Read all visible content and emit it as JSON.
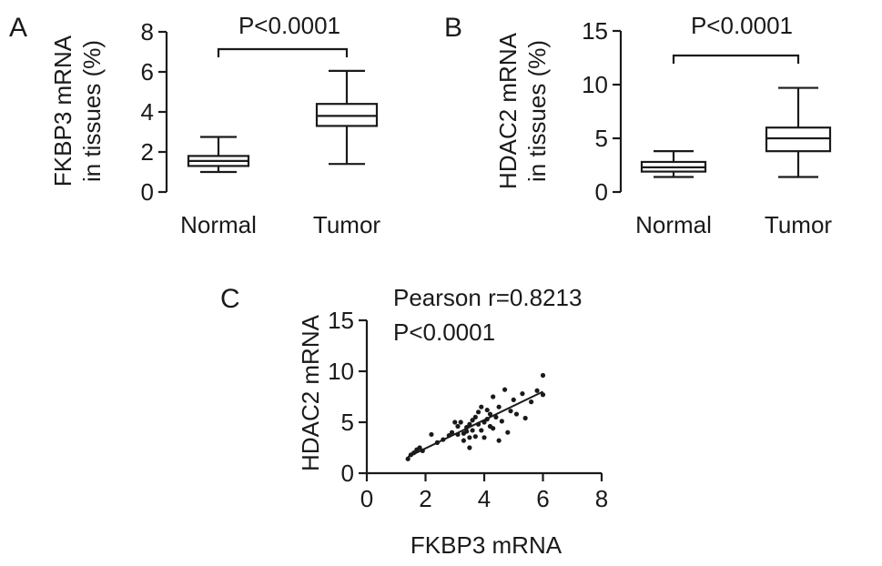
{
  "chart_data": [
    {
      "panel": "A",
      "type": "box",
      "ylabel_line1": "FKBP3 mRNA",
      "ylabel_line2": "in tissues (%)",
      "ylim": [
        0,
        8
      ],
      "yticks": [
        "0",
        "2",
        "4",
        "6",
        "8"
      ],
      "categories": [
        "Normal",
        "Tumor"
      ],
      "boxes": [
        {
          "name": "Normal",
          "min": 1.0,
          "q1": 1.3,
          "median": 1.55,
          "q3": 1.8,
          "max": 2.75
        },
        {
          "name": "Tumor",
          "min": 1.4,
          "q1": 3.3,
          "median": 3.8,
          "q3": 4.4,
          "max": 6.05
        }
      ],
      "annotation": "P<0.0001"
    },
    {
      "panel": "B",
      "type": "box",
      "ylabel_line1": "HDAC2 mRNA",
      "ylabel_line2": "in tissues (%)",
      "ylim": [
        0,
        15
      ],
      "yticks": [
        "0",
        "5",
        "10",
        "15"
      ],
      "categories": [
        "Normal",
        "Tumor"
      ],
      "boxes": [
        {
          "name": "Normal",
          "min": 1.4,
          "q1": 1.9,
          "median": 2.3,
          "q3": 2.8,
          "max": 3.8
        },
        {
          "name": "Tumor",
          "min": 1.4,
          "q1": 3.8,
          "median": 5.0,
          "q3": 6.0,
          "max": 9.7
        }
      ],
      "annotation": "P<0.0001"
    },
    {
      "panel": "C",
      "type": "scatter",
      "xlabel": "FKBP3 mRNA",
      "ylabel": "HDAC2 mRNA",
      "xlim": [
        0,
        8
      ],
      "ylim": [
        0,
        15
      ],
      "xticks": [
        "0",
        "2",
        "4",
        "6",
        "8"
      ],
      "yticks": [
        "0",
        "5",
        "10",
        "15"
      ],
      "annotation_line1": "Pearson r=0.8213",
      "annotation_line2": "P<0.0001",
      "points": [
        [
          1.4,
          1.4
        ],
        [
          1.5,
          1.8
        ],
        [
          1.6,
          2.0
        ],
        [
          1.7,
          2.3
        ],
        [
          1.8,
          2.5
        ],
        [
          1.9,
          2.2
        ],
        [
          2.2,
          3.8
        ],
        [
          2.4,
          3.0
        ],
        [
          2.6,
          3.3
        ],
        [
          2.8,
          3.7
        ],
        [
          2.9,
          4.0
        ],
        [
          3.0,
          5.0
        ],
        [
          3.1,
          3.8
        ],
        [
          3.1,
          4.6
        ],
        [
          3.2,
          5.0
        ],
        [
          3.3,
          3.9
        ],
        [
          3.3,
          3.2
        ],
        [
          3.4,
          4.5
        ],
        [
          3.4,
          4.1
        ],
        [
          3.5,
          2.5
        ],
        [
          3.5,
          3.5
        ],
        [
          3.5,
          4.8
        ],
        [
          3.6,
          5.2
        ],
        [
          3.6,
          4.2
        ],
        [
          3.7,
          5.5
        ],
        [
          3.7,
          3.6
        ],
        [
          3.8,
          4.8
        ],
        [
          3.8,
          6.0
        ],
        [
          3.9,
          4.2
        ],
        [
          3.9,
          6.5
        ],
        [
          4.0,
          3.5
        ],
        [
          4.0,
          5.0
        ],
        [
          4.1,
          5.3
        ],
        [
          4.1,
          6.2
        ],
        [
          4.2,
          4.6
        ],
        [
          4.2,
          5.8
        ],
        [
          4.3,
          4.4
        ],
        [
          4.3,
          7.5
        ],
        [
          4.4,
          5.5
        ],
        [
          4.5,
          6.5
        ],
        [
          4.5,
          3.2
        ],
        [
          4.6,
          5.1
        ],
        [
          4.7,
          8.2
        ],
        [
          4.8,
          4.0
        ],
        [
          4.9,
          6.1
        ],
        [
          5.0,
          7.2
        ],
        [
          5.1,
          5.8
        ],
        [
          5.3,
          7.8
        ],
        [
          5.4,
          5.4
        ],
        [
          5.6,
          7.0
        ],
        [
          5.8,
          8.1
        ],
        [
          6.0,
          9.6
        ],
        [
          6.0,
          7.7
        ]
      ],
      "fit_line": {
        "x": [
          1.4,
          6.0
        ],
        "y": [
          1.6,
          8.0
        ]
      }
    }
  ],
  "panel_labels": {
    "a": "A",
    "b": "B",
    "c": "C"
  },
  "colors": {
    "ink": "#1a1a1a",
    "box_fill": "#ffffff"
  }
}
